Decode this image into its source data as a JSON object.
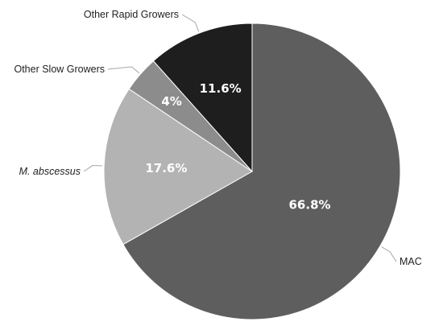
{
  "chart_data": {
    "type": "pie",
    "slices": [
      {
        "name": "MAC",
        "value": 66.8,
        "label": "66.8%",
        "color": "#5e5e5e"
      },
      {
        "name": "M. abscessus",
        "value": 17.6,
        "label": "17.6%",
        "color": "#b3b3b3",
        "italic": true
      },
      {
        "name": "Other Slow Growers",
        "value": 4,
        "label": "4%",
        "color": "#8c8c8c"
      },
      {
        "name": "Other Rapid Growers",
        "value": 11.6,
        "label": "11.6%",
        "color": "#1e1e1e"
      }
    ],
    "start": "12 o'clock",
    "direction": "clockwise",
    "legend": "none",
    "title": ""
  }
}
